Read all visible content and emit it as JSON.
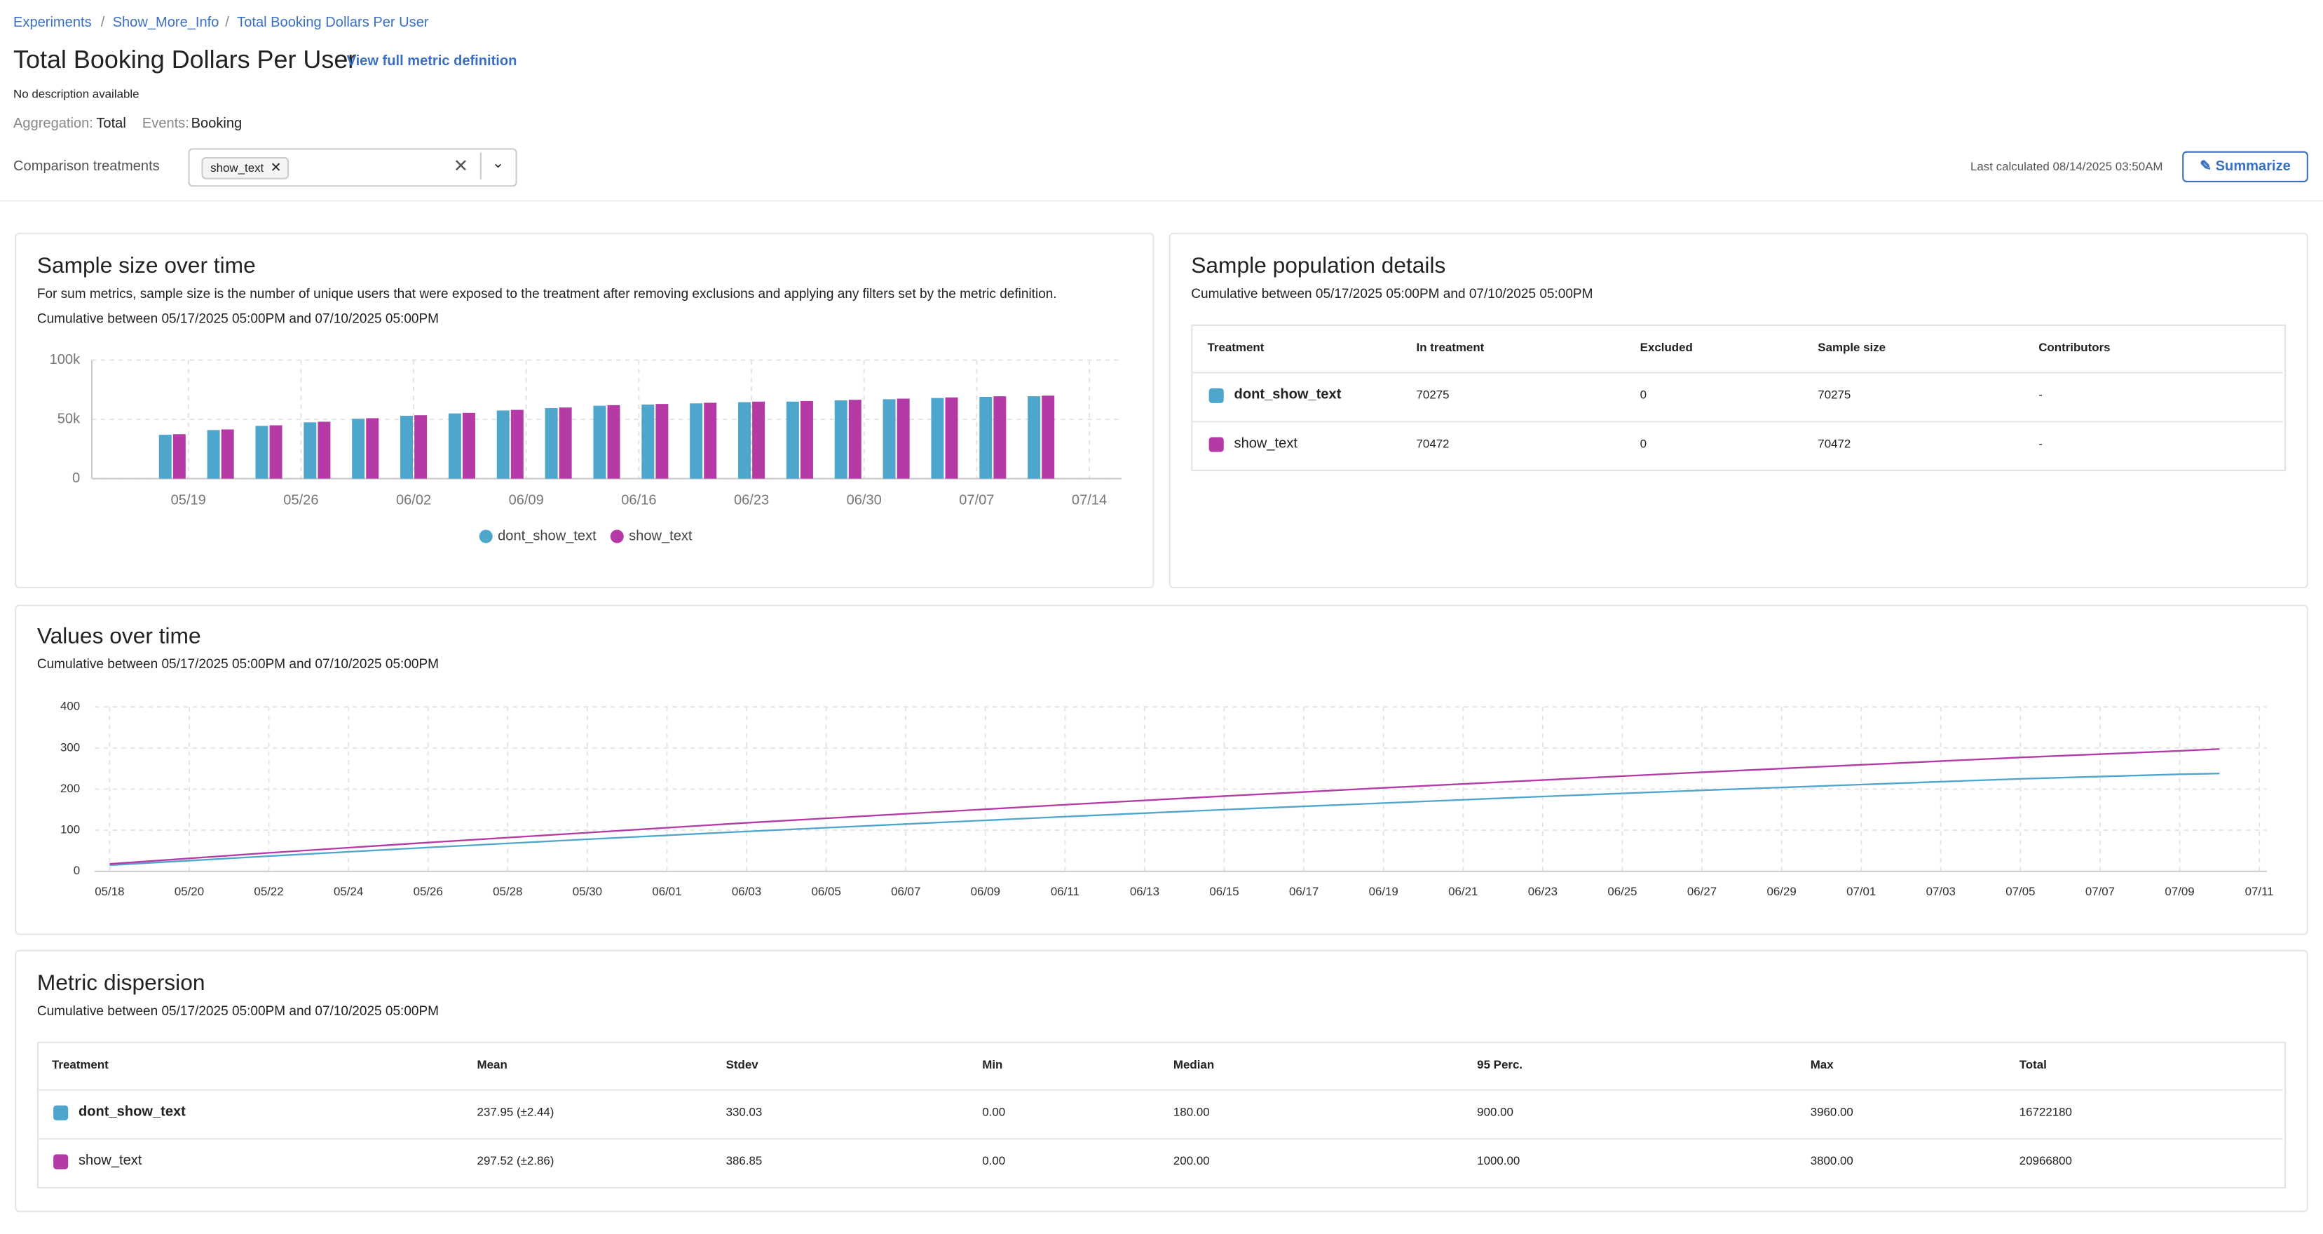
{
  "breadcrumbs": [
    "Experiments",
    "Show_More_Info",
    "Total Booking Dollars Per User"
  ],
  "header": {
    "title": "Total Booking Dollars Per User",
    "definition_link": "View full metric definition",
    "description": "No description available",
    "aggregation_label": "Aggregation:",
    "aggregation": "Total",
    "events_label": "Events:",
    "events": "Booking"
  },
  "comparison": {
    "label": "Comparison treatments",
    "selected": "show_text",
    "last_calculated": "Last calculated 08/14/2025 03:50AM",
    "button": "Summarize"
  },
  "chart_data": [
    {
      "type": "bar",
      "title": "Sample size over time",
      "description": "For sum metrics, sample size is the number of unique users that were exposed to the treatment after removing exclusions and applying any filters set by the metric definition.",
      "subtitle": "Cumulative between 05/17/2025 05:00PM and 07/10/2025 05:00PM",
      "x": [
        "05/18",
        "05/21",
        "05/24",
        "05/27",
        "05/30",
        "06/02",
        "06/05",
        "06/08",
        "06/11",
        "06/14",
        "06/17",
        "06/20",
        "06/23",
        "06/26",
        "06/29",
        "07/02",
        "07/05",
        "07/08",
        "07/11"
      ],
      "series": [
        {
          "name": "dont_show_text",
          "color": "#4ea6cc",
          "values": [
            37000,
            41000,
            44500,
            47500,
            50500,
            53000,
            55000,
            57500,
            59500,
            61500,
            62500,
            63500,
            64500,
            65000,
            66000,
            67000,
            68000,
            69000,
            69500
          ]
        },
        {
          "name": "show_text",
          "color": "#b53aa6",
          "values": [
            37500,
            41500,
            45000,
            48000,
            51000,
            53500,
            55500,
            58000,
            60000,
            62000,
            63000,
            64000,
            65000,
            65500,
            66500,
            67500,
            68500,
            69500,
            70000
          ]
        }
      ],
      "xlim": [
        "05/13",
        "07/16"
      ],
      "xticks": [
        "05/19",
        "05/26",
        "06/02",
        "06/09",
        "06/16",
        "06/23",
        "06/30",
        "07/07",
        "07/14"
      ],
      "ylim": [
        0,
        100000
      ],
      "yticks": [
        {
          "value": 0,
          "label": "0"
        },
        {
          "value": 50000,
          "label": "50k"
        },
        {
          "value": 100000,
          "label": "100k"
        }
      ],
      "grid": true
    },
    {
      "type": "line",
      "title": "Values over time",
      "subtitle": "Cumulative between 05/17/2025 05:00PM and 07/10/2025 05:00PM",
      "x": [
        "05/18",
        "05/22",
        "05/26",
        "05/30",
        "06/03",
        "06/07",
        "06/11",
        "06/15",
        "06/19",
        "06/23",
        "06/27",
        "07/01",
        "07/05",
        "07/09",
        "07/10"
      ],
      "series": [
        {
          "name": "dont_show_text",
          "color": "#4ea6cc",
          "values": [
            15,
            37,
            58,
            78,
            97,
            115,
            133,
            150,
            166,
            182,
            197,
            211,
            225,
            236,
            237.95
          ]
        },
        {
          "name": "show_text",
          "color": "#b53aa6",
          "values": [
            18,
            45,
            70,
            94,
            118,
            140,
            162,
            183,
            203,
            222,
            241,
            259,
            277,
            293,
            297.52
          ]
        }
      ],
      "xlim": [
        "05/18",
        "07/11"
      ],
      "xticks": [
        "05/18",
        "05/20",
        "05/22",
        "05/24",
        "05/26",
        "05/28",
        "05/30",
        "06/01",
        "06/03",
        "06/05",
        "06/07",
        "06/09",
        "06/11",
        "06/13",
        "06/15",
        "06/17",
        "06/19",
        "06/21",
        "06/23",
        "06/25",
        "06/27",
        "06/29",
        "07/01",
        "07/03",
        "07/05",
        "07/07",
        "07/09",
        "07/11"
      ],
      "ylim": [
        0,
        400
      ],
      "yticks": [
        0,
        100,
        200,
        300,
        400
      ],
      "grid": true
    }
  ],
  "population": {
    "title": "Sample population details",
    "subtitle": "Cumulative between 05/17/2025 05:00PM and 07/10/2025 05:00PM",
    "columns": [
      "Treatment",
      "In treatment",
      "Excluded",
      "Sample size",
      "Contributors"
    ],
    "rows": [
      [
        "dont_show_text",
        "70275",
        "0",
        "70275",
        "-"
      ],
      [
        "show_text",
        "70472",
        "0",
        "70472",
        "-"
      ]
    ]
  },
  "dispersion": {
    "title": "Metric dispersion",
    "subtitle": "Cumulative between 05/17/2025 05:00PM and 07/10/2025 05:00PM",
    "columns": [
      "Treatment",
      "Mean",
      "Stdev",
      "Min",
      "Median",
      "95 Perc.",
      "Max",
      "Total"
    ],
    "rows": [
      [
        "dont_show_text",
        "237.95 (±2.44)",
        "330.03",
        "0.00",
        "180.00",
        "900.00",
        "3960.00",
        "16722180"
      ],
      [
        "show_text",
        "297.52 (±2.86)",
        "386.85",
        "0.00",
        "200.00",
        "1000.00",
        "3800.00",
        "20966800"
      ]
    ]
  }
}
